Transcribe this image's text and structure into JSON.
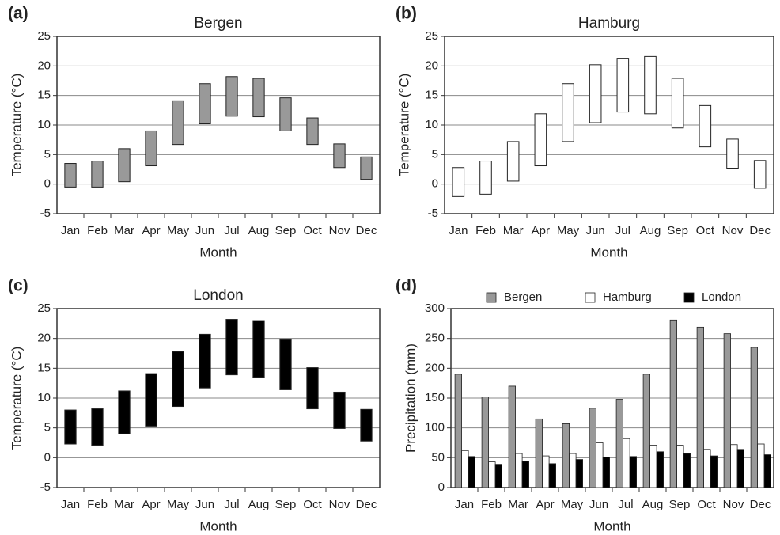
{
  "chart_data": [
    {
      "type": "range-bar",
      "label": "(a)",
      "title": "Bergen",
      "xlabel": "Month",
      "ylabel": "Temperature (°C)",
      "categories": [
        "Jan",
        "Feb",
        "Mar",
        "Apr",
        "May",
        "Jun",
        "Jul",
        "Aug",
        "Sep",
        "Oct",
        "Nov",
        "Dec"
      ],
      "low": [
        -0.5,
        -0.5,
        0.4,
        3.1,
        6.7,
        10.2,
        11.5,
        11.4,
        9.0,
        6.7,
        2.8,
        0.8
      ],
      "high": [
        3.5,
        3.9,
        6.0,
        9.0,
        14.1,
        17.0,
        18.2,
        17.9,
        14.6,
        11.2,
        6.8,
        4.6
      ],
      "color": "#999999",
      "ylim": [
        -5,
        25
      ],
      "yticks": [
        -5,
        0,
        5,
        10,
        15,
        20,
        25
      ],
      "grid": true
    },
    {
      "type": "range-bar",
      "label": "(b)",
      "title": "Hamburg",
      "xlabel": "Month",
      "ylabel": "Temperature (°C)",
      "categories": [
        "Jan",
        "Feb",
        "Mar",
        "Apr",
        "May",
        "Jun",
        "Jul",
        "Aug",
        "Sep",
        "Oct",
        "Nov",
        "Dec"
      ],
      "low": [
        -2.1,
        -1.7,
        0.5,
        3.1,
        7.2,
        10.4,
        12.2,
        11.9,
        9.5,
        6.3,
        2.7,
        -0.7
      ],
      "high": [
        2.8,
        3.9,
        7.2,
        11.9,
        17.0,
        20.2,
        21.3,
        21.6,
        17.9,
        13.3,
        7.6,
        4.0
      ],
      "color": "#ffffff",
      "ylim": [
        -5,
        25
      ],
      "yticks": [
        -5,
        0,
        5,
        10,
        15,
        20,
        25
      ],
      "grid": true
    },
    {
      "type": "range-bar",
      "label": "(c)",
      "title": "London",
      "xlabel": "Month",
      "ylabel": "Temperature (°C)",
      "categories": [
        "Jan",
        "Feb",
        "Mar",
        "Apr",
        "May",
        "Jun",
        "Jul",
        "Aug",
        "Sep",
        "Oct",
        "Nov",
        "Dec"
      ],
      "low": [
        2.3,
        2.1,
        4.0,
        5.3,
        8.6,
        11.7,
        13.9,
        13.5,
        11.4,
        8.2,
        4.9,
        2.8
      ],
      "high": [
        8.0,
        8.2,
        11.2,
        14.1,
        17.8,
        20.7,
        23.2,
        23.0,
        19.9,
        15.1,
        11.0,
        8.1
      ],
      "color": "#000000",
      "ylim": [
        -5,
        25
      ],
      "yticks": [
        -5,
        0,
        5,
        10,
        15,
        20,
        25
      ],
      "grid": true
    },
    {
      "type": "grouped-bar",
      "label": "(d)",
      "xlabel": "Month",
      "ylabel": "Precipitation (mm)",
      "categories": [
        "Jan",
        "Feb",
        "Mar",
        "Apr",
        "May",
        "Jun",
        "Jul",
        "Aug",
        "Sep",
        "Oct",
        "Nov",
        "Dec"
      ],
      "series": [
        {
          "name": "Bergen",
          "color": "#999999",
          "values": [
            190,
            152,
            170,
            115,
            107,
            133,
            148,
            190,
            281,
            269,
            258,
            235
          ]
        },
        {
          "name": "Hamburg",
          "color": "#ffffff",
          "values": [
            62,
            43,
            57,
            53,
            57,
            75,
            82,
            71,
            71,
            64,
            72,
            73
          ]
        },
        {
          "name": "London",
          "color": "#000000",
          "values": [
            52,
            39,
            44,
            40,
            47,
            51,
            52,
            60,
            57,
            53,
            64,
            55
          ]
        }
      ],
      "ylim": [
        0,
        300
      ],
      "yticks": [
        0,
        50,
        100,
        150,
        200,
        250,
        300
      ],
      "grid": true,
      "legend": "top"
    }
  ]
}
